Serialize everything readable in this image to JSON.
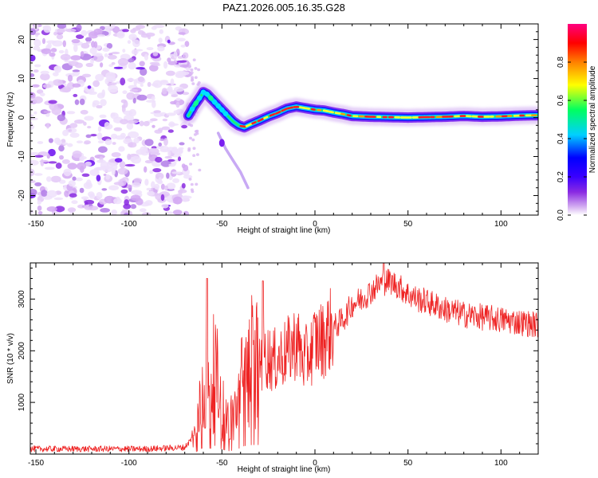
{
  "title": "PAZ1.2026.005.16.35.G28",
  "chart_data": [
    {
      "type": "heatmap",
      "name": "spectrogram",
      "xlabel": "Height of straight line (km)",
      "ylabel": "Frequency (Hz)",
      "xlim": [
        -153,
        120
      ],
      "ylim": [
        -25,
        24
      ],
      "xticks": [
        -150,
        -100,
        -50,
        0,
        50,
        100
      ],
      "yticks": [
        -20,
        -10,
        0,
        10,
        20
      ],
      "colorbar": {
        "label": "Normalized spectral amplitude",
        "range": [
          0,
          1
        ],
        "ticks": [
          0.0,
          0.2,
          0.4,
          0.6,
          0.8
        ],
        "tick_labels": [
          "0.0",
          "0.2",
          "0.4",
          "0.6",
          "0.8"
        ],
        "colors": [
          "#ffffff",
          "#d7b4f2",
          "#8a2be2",
          "#3a00ff",
          "#0000ff",
          "#00d0ff",
          "#00ff60",
          "#ffff00",
          "#ff8000",
          "#ff0000",
          "#ff0080"
        ]
      },
      "noise_region_x": [
        -153,
        -68
      ],
      "dominant_frequency": {
        "x": [
          -68,
          -65,
          -62,
          -60,
          -58,
          -56,
          -53,
          -50,
          -47,
          -44,
          -41,
          -38,
          -35,
          -30,
          -25,
          -20,
          -15,
          -10,
          -5,
          0,
          5,
          10,
          15,
          20,
          30,
          40,
          50,
          60,
          70,
          80,
          90,
          100,
          110,
          120
        ],
        "y": [
          0.5,
          3,
          5,
          6.5,
          6,
          5,
          3.5,
          2,
          0.5,
          -1,
          -2,
          -2.5,
          -1.8,
          -0.8,
          0.3,
          1.2,
          2.3,
          2.8,
          2.4,
          2.0,
          1.8,
          1.3,
          0.9,
          0.4,
          0.2,
          0.1,
          0.0,
          0.1,
          0.2,
          0.4,
          0.2,
          0.3,
          0.5,
          0.6
        ]
      },
      "secondary_trace": {
        "x": [
          -52,
          -48,
          -44,
          -40,
          -36
        ],
        "y": [
          -4,
          -8,
          -11,
          -14,
          -18
        ]
      }
    },
    {
      "type": "line",
      "name": "snr",
      "xlabel": "Height of straight line (km)",
      "ylabel": "SNR (10 * v/v)",
      "xlim": [
        -153,
        120
      ],
      "ylim": [
        0,
        3700
      ],
      "xticks": [
        -150,
        -100,
        -50,
        0,
        50,
        100
      ],
      "yticks": [
        1000,
        2000,
        3000
      ],
      "color": "#ee2222",
      "envelope": {
        "x": [
          -153,
          -120,
          -90,
          -70,
          -64,
          -60,
          -58,
          -56,
          -54,
          -50,
          -46,
          -42,
          -38,
          -34,
          -30,
          -26,
          -22,
          -18,
          -14,
          -10,
          -6,
          -2,
          0,
          4,
          8,
          12,
          16,
          20,
          25,
          30,
          35,
          40,
          45,
          50,
          55,
          60,
          70,
          80,
          90,
          100,
          110,
          120
        ],
        "y": [
          100,
          100,
          100,
          130,
          400,
          1300,
          1100,
          1100,
          1700,
          900,
          600,
          900,
          1600,
          1800,
          1800,
          1900,
          1800,
          1900,
          2000,
          2200,
          1800,
          2000,
          2200,
          2200,
          2400,
          2500,
          2650,
          2900,
          3000,
          3150,
          3300,
          3350,
          3250,
          3100,
          3000,
          2950,
          2800,
          2700,
          2650,
          2600,
          2550,
          2500
        ]
      },
      "spikes": [
        {
          "x": -58,
          "y": 3400
        },
        {
          "x": -28,
          "y": 3350
        },
        {
          "x": 37,
          "y": 3700
        }
      ]
    }
  ]
}
